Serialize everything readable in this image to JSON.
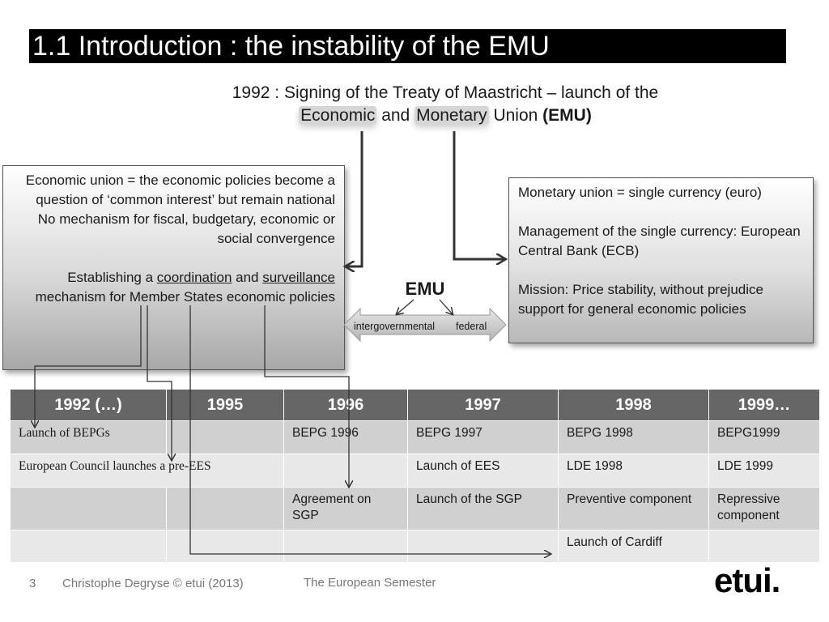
{
  "title": "1.1 Introduction : the instability of the EMU",
  "subtitle": {
    "line1": "1992 : Signing of the Treaty of Maastricht – launch of the",
    "economic": "Economic",
    "and": " and ",
    "monetary": "Monetary",
    "union": " Union ",
    "emu_bold": "(EMU)"
  },
  "left_box": {
    "line1": "Economic union = the economic policies become a question of ‘common interest’ but remain national",
    "line2": "No mechanism for fiscal, budgetary, economic or social convergence",
    "line3_pre": "Establishing a ",
    "coordination": "coordination",
    "and": " and ",
    "surveillance": "surveillance",
    "line3_post": " mechanism for Member States economic policies"
  },
  "right_box": {
    "line1": "Monetary union = single currency (euro)",
    "line2": "Management of the single currency: European Central Bank (ECB)",
    "line3": "Mission: Price stability, without prejudice support for general economic policies"
  },
  "emu": {
    "label": "EMU",
    "left": "intergovernmental",
    "right": "federal"
  },
  "table": {
    "headers": [
      "1992 (…)",
      "1995",
      "1996",
      "1997",
      "1998",
      "1999…"
    ],
    "rows": [
      [
        "Launch of BEPGs",
        "",
        "BEPG 1996",
        "BEPG 1997",
        "BEPG 1998",
        "BEPG1999"
      ],
      [
        "European Council launches a pre-EES",
        "",
        "",
        "Launch of EES",
        "LDE 1998",
        "LDE 1999"
      ],
      [
        "",
        "",
        "Agreement on SGP",
        "Launch of the SGP",
        "Preventive component",
        "Repressive component"
      ],
      [
        "",
        "",
        "",
        "",
        "Launch of Cardiff",
        ""
      ]
    ]
  },
  "footer": {
    "page": "3",
    "author": "Christophe Degryse © etui (2013)",
    "title": "The European Semester",
    "logo": "etui."
  }
}
